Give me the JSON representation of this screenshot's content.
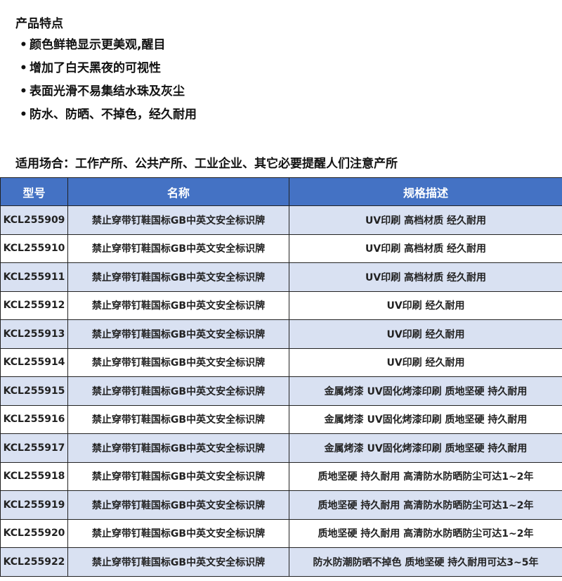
{
  "features": {
    "title": "产品特点",
    "items": [
      "颜色鲜艳显示更美观,醒目",
      "增加了白天黑夜的可视性",
      "表面光滑不易集结水珠及灰尘",
      "防水、防晒、不掉色，经久耐用"
    ]
  },
  "usage": "适用场合：工作产所、公共产所、工业企业、其它必要提醒人们注意产所",
  "table": {
    "header_color": "#4472C4",
    "stripe_color": "#D9E1F2",
    "columns": [
      "型号",
      "名称",
      "规格描述"
    ],
    "rows": [
      [
        "KCL255909",
        "禁止穿带钉鞋国标GB中英文安全标识牌",
        "UV印刷 高档材质 经久耐用"
      ],
      [
        "KCL255910",
        "禁止穿带钉鞋国标GB中英文安全标识牌",
        "UV印刷 高档材质 经久耐用"
      ],
      [
        "KCL255911",
        "禁止穿带钉鞋国标GB中英文安全标识牌",
        "UV印刷 高档材质 经久耐用"
      ],
      [
        "KCL255912",
        "禁止穿带钉鞋国标GB中英文安全标识牌",
        "UV印刷 经久耐用"
      ],
      [
        "KCL255913",
        "禁止穿带钉鞋国标GB中英文安全标识牌",
        "UV印刷 经久耐用"
      ],
      [
        "KCL255914",
        "禁止穿带钉鞋国标GB中英文安全标识牌",
        "UV印刷 经久耐用"
      ],
      [
        "KCL255915",
        "禁止穿带钉鞋国标GB中英文安全标识牌",
        "金属烤漆 UV固化烤漆印刷 质地坚硬 持久耐用"
      ],
      [
        "KCL255916",
        "禁止穿带钉鞋国标GB中英文安全标识牌",
        "金属烤漆 UV固化烤漆印刷 质地坚硬 持久耐用"
      ],
      [
        "KCL255917",
        "禁止穿带钉鞋国标GB中英文安全标识牌",
        "金属烤漆 UV固化烤漆印刷 质地坚硬 持久耐用"
      ],
      [
        "KCL255918",
        "禁止穿带钉鞋国标GB中英文安全标识牌",
        "质地坚硬 持久耐用 高清防水防晒防尘可达1~2年"
      ],
      [
        "KCL255919",
        "禁止穿带钉鞋国标GB中英文安全标识牌",
        "质地坚硬 持久耐用 高清防水防晒防尘可达1~2年"
      ],
      [
        "KCL255920",
        "禁止穿带钉鞋国标GB中英文安全标识牌",
        "质地坚硬 持久耐用 高清防水防晒防尘可达1~2年"
      ],
      [
        "KCL255922",
        "禁止穿带钉鞋国标GB中英文安全标识牌",
        "防水防潮防晒不掉色 质地坚硬 持久耐用可达3~5年"
      ]
    ]
  }
}
